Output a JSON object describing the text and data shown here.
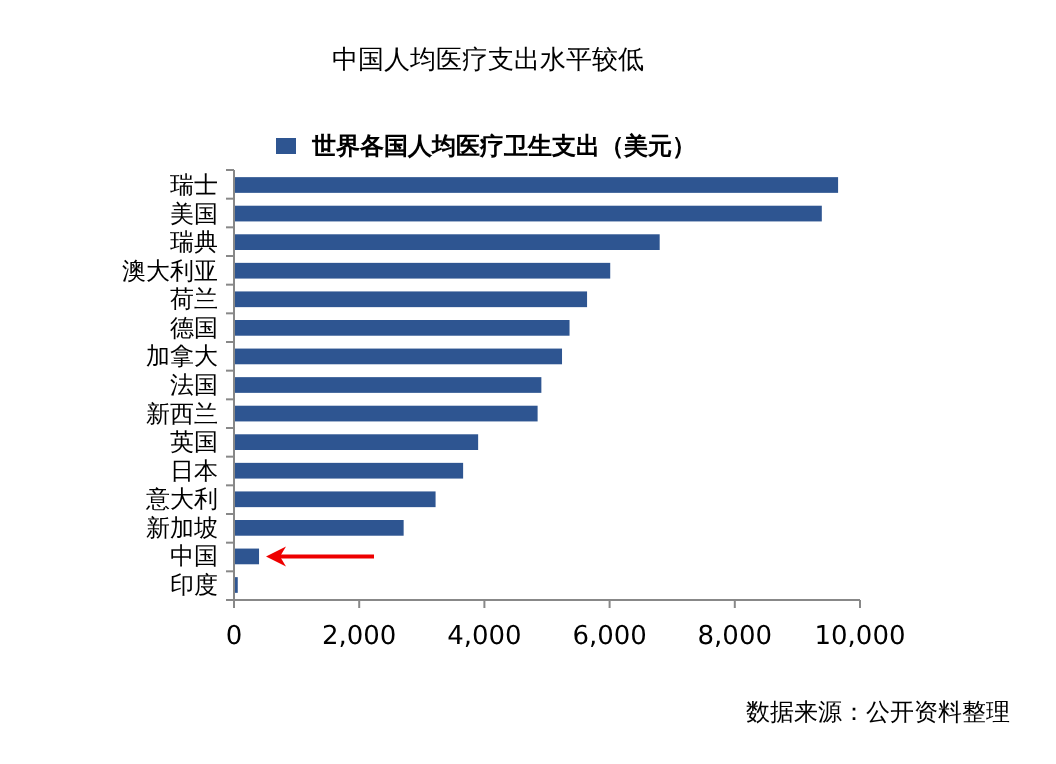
{
  "chart_data": {
    "type": "bar",
    "orientation": "horizontal",
    "title": "中国人均医疗支出水平较低",
    "categories": [
      "瑞士",
      "美国",
      "瑞典",
      "澳大利亚",
      "荷兰",
      "德国",
      "加拿大",
      "法国",
      "新西兰",
      "英国",
      "日本",
      "意大利",
      "新加坡",
      "中国",
      "印度"
    ],
    "series": [
      {
        "name": "世界各国人均医疗卫生支出（美元）",
        "color": "#2e5591",
        "values": [
          9650,
          9390,
          6800,
          6010,
          5640,
          5360,
          5240,
          4910,
          4850,
          3900,
          3660,
          3220,
          2710,
          400,
          60
        ]
      }
    ],
    "xlim": [
      0,
      10000
    ],
    "xticks": [
      {
        "value": 0,
        "label": "0"
      },
      {
        "value": 2000,
        "label": "2,000"
      },
      {
        "value": 4000,
        "label": "4,000"
      },
      {
        "value": 6000,
        "label": "6,000"
      },
      {
        "value": 8000,
        "label": "8,000"
      },
      {
        "value": 10000,
        "label": "10,000"
      }
    ],
    "legend": "top",
    "grid": false,
    "annotations": [
      "数据来源：公开资料整理"
    ]
  }
}
